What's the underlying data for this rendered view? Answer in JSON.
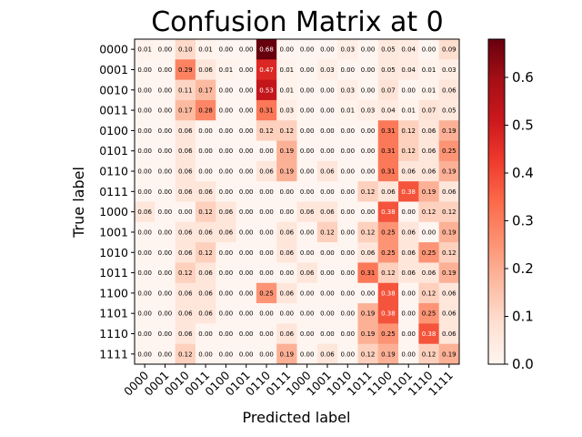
{
  "chart_data": {
    "type": "heatmap",
    "title": "Confusion Matrix at 0",
    "xlabel": "Predicted label",
    "ylabel": "True label",
    "colormap": "Reds",
    "vmin": 0,
    "vmax": 0.68,
    "colorbar_ticks": [
      "0.0",
      "0.1",
      "0.2",
      "0.3",
      "0.4",
      "0.5",
      "0.6"
    ],
    "x_categories": [
      "0000",
      "0001",
      "0010",
      "0011",
      "0100",
      "0101",
      "0110",
      "0111",
      "1000",
      "1001",
      "1010",
      "1011",
      "1100",
      "1101",
      "1110",
      "1111"
    ],
    "y_categories": [
      "0000",
      "0001",
      "0010",
      "0011",
      "0100",
      "0101",
      "0110",
      "0111",
      "1000",
      "1001",
      "1010",
      "1011",
      "1100",
      "1101",
      "1110",
      "1111"
    ],
    "values": [
      [
        0.01,
        0.0,
        0.1,
        0.01,
        0.0,
        0.0,
        0.68,
        0.0,
        0.0,
        0.0,
        0.03,
        0.0,
        0.05,
        0.04,
        0.0,
        0.09
      ],
      [
        0.0,
        0.0,
        0.29,
        0.06,
        0.01,
        0.0,
        0.47,
        0.01,
        0.0,
        0.03,
        0.0,
        0.0,
        0.05,
        0.04,
        0.01,
        0.03
      ],
      [
        0.0,
        0.0,
        0.11,
        0.17,
        0.0,
        0.0,
        0.53,
        0.01,
        0.0,
        0.0,
        0.03,
        0.0,
        0.07,
        0.0,
        0.01,
        0.06
      ],
      [
        0.0,
        0.0,
        0.17,
        0.28,
        0.0,
        0.0,
        0.31,
        0.03,
        0.0,
        0.0,
        0.01,
        0.03,
        0.04,
        0.01,
        0.07,
        0.05
      ],
      [
        0.0,
        0.0,
        0.06,
        0.0,
        0.0,
        0.0,
        0.12,
        0.12,
        0.0,
        0.0,
        0.0,
        0.0,
        0.31,
        0.12,
        0.06,
        0.19
      ],
      [
        0.0,
        0.0,
        0.06,
        0.0,
        0.0,
        0.0,
        0.0,
        0.19,
        0.0,
        0.0,
        0.0,
        0.0,
        0.31,
        0.12,
        0.06,
        0.25
      ],
      [
        0.0,
        0.0,
        0.06,
        0.0,
        0.0,
        0.0,
        0.06,
        0.19,
        0.0,
        0.06,
        0.0,
        0.0,
        0.31,
        0.06,
        0.06,
        0.19
      ],
      [
        0.0,
        0.0,
        0.06,
        0.06,
        0.0,
        0.0,
        0.0,
        0.0,
        0.0,
        0.0,
        0.0,
        0.12,
        0.06,
        0.38,
        0.19,
        0.06
      ],
      [
        0.06,
        0.0,
        0.0,
        0.12,
        0.06,
        0.0,
        0.0,
        0.0,
        0.06,
        0.06,
        0.0,
        0.0,
        0.38,
        0.0,
        0.12,
        0.12
      ],
      [
        0.0,
        0.0,
        0.06,
        0.06,
        0.06,
        0.0,
        0.0,
        0.06,
        0.0,
        0.12,
        0.0,
        0.12,
        0.25,
        0.06,
        0.0,
        0.19
      ],
      [
        0.0,
        0.0,
        0.06,
        0.12,
        0.0,
        0.0,
        0.0,
        0.06,
        0.0,
        0.0,
        0.0,
        0.06,
        0.25,
        0.06,
        0.25,
        0.12
      ],
      [
        0.0,
        0.0,
        0.12,
        0.06,
        0.0,
        0.0,
        0.0,
        0.0,
        0.06,
        0.0,
        0.0,
        0.31,
        0.12,
        0.06,
        0.06,
        0.19
      ],
      [
        0.0,
        0.0,
        0.06,
        0.06,
        0.0,
        0.0,
        0.25,
        0.06,
        0.0,
        0.0,
        0.0,
        0.0,
        0.38,
        0.0,
        0.12,
        0.06
      ],
      [
        0.0,
        0.0,
        0.06,
        0.06,
        0.0,
        0.0,
        0.0,
        0.0,
        0.0,
        0.0,
        0.0,
        0.19,
        0.38,
        0.0,
        0.25,
        0.06
      ],
      [
        0.0,
        0.0,
        0.06,
        0.0,
        0.0,
        0.0,
        0.0,
        0.06,
        0.0,
        0.0,
        0.0,
        0.19,
        0.25,
        0.0,
        0.38,
        0.06
      ],
      [
        0.0,
        0.0,
        0.12,
        0.0,
        0.0,
        0.0,
        0.0,
        0.19,
        0.0,
        0.06,
        0.0,
        0.12,
        0.19,
        0.0,
        0.12,
        0.19
      ]
    ]
  }
}
